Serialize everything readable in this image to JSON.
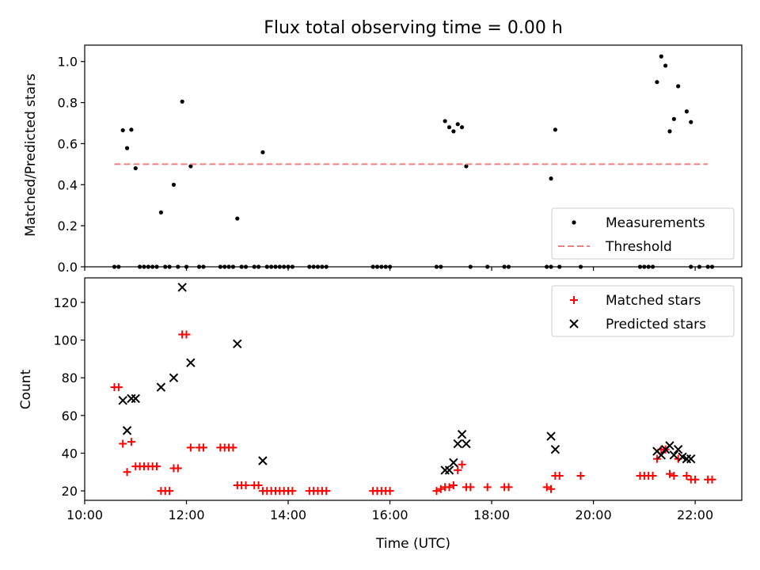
{
  "chart_data": [
    {
      "type": "scatter",
      "title": "Flux total observing time = 0.00 h",
      "xlabel": "",
      "ylabel": "Matched/Predicted stars",
      "xlim": [
        "10:00",
        "22:55"
      ],
      "ylim": [
        0,
        1.08
      ],
      "x_ticks": [
        "10:00",
        "12:00",
        "14:00",
        "16:00",
        "18:00",
        "20:00",
        "22:00"
      ],
      "y_ticks": [
        "0.0",
        "0.2",
        "0.4",
        "0.6",
        "0.8",
        "1.0"
      ],
      "legend_position": "lower-right",
      "series": [
        {
          "name": "Measurements",
          "marker": "dot",
          "color": "#000000",
          "points": [
            [
              "10:35",
              0
            ],
            [
              "10:40",
              0
            ],
            [
              "10:45",
              0.665
            ],
            [
              "10:50",
              0.578
            ],
            [
              "10:55",
              0.668
            ],
            [
              "11:00",
              0.48
            ],
            [
              "11:05",
              0
            ],
            [
              "11:10",
              0
            ],
            [
              "11:15",
              0
            ],
            [
              "11:20",
              0
            ],
            [
              "11:25",
              0
            ],
            [
              "11:30",
              0.265
            ],
            [
              "11:35",
              0
            ],
            [
              "11:40",
              0
            ],
            [
              "11:45",
              0.4
            ],
            [
              "11:50",
              0
            ],
            [
              "11:55",
              0.805
            ],
            [
              "12:00",
              0
            ],
            [
              "12:05",
              0.49
            ],
            [
              "12:15",
              0
            ],
            [
              "12:20",
              0
            ],
            [
              "12:40",
              0
            ],
            [
              "12:45",
              0
            ],
            [
              "12:50",
              0
            ],
            [
              "12:55",
              0
            ],
            [
              "13:00",
              0.235
            ],
            [
              "13:05",
              0
            ],
            [
              "13:10",
              0
            ],
            [
              "13:20",
              0
            ],
            [
              "13:25",
              0
            ],
            [
              "13:30",
              0.558
            ],
            [
              "13:35",
              0
            ],
            [
              "13:40",
              0
            ],
            [
              "13:45",
              0
            ],
            [
              "13:50",
              0
            ],
            [
              "13:55",
              0
            ],
            [
              "14:00",
              0
            ],
            [
              "14:05",
              0
            ],
            [
              "14:25",
              0
            ],
            [
              "14:30",
              0
            ],
            [
              "14:35",
              0
            ],
            [
              "14:40",
              0
            ],
            [
              "14:45",
              0
            ],
            [
              "15:40",
              0
            ],
            [
              "15:45",
              0
            ],
            [
              "15:50",
              0
            ],
            [
              "15:55",
              0
            ],
            [
              "16:00",
              0
            ],
            [
              "16:55",
              0
            ],
            [
              "17:00",
              0
            ],
            [
              "17:05",
              0.71
            ],
            [
              "17:10",
              0.68
            ],
            [
              "17:15",
              0.66
            ],
            [
              "17:20",
              0.695
            ],
            [
              "17:25",
              0.68
            ],
            [
              "17:30",
              0.49
            ],
            [
              "17:35",
              0
            ],
            [
              "17:55",
              0
            ],
            [
              "18:15",
              0
            ],
            [
              "18:20",
              0
            ],
            [
              "19:05",
              0
            ],
            [
              "19:10",
              0
            ],
            [
              "19:10",
              0.43
            ],
            [
              "19:15",
              0.668
            ],
            [
              "19:20",
              0
            ],
            [
              "19:45",
              0
            ],
            [
              "20:55",
              0
            ],
            [
              "21:00",
              0
            ],
            [
              "21:05",
              0
            ],
            [
              "21:10",
              0
            ],
            [
              "21:15",
              0.9
            ],
            [
              "21:20",
              1.025
            ],
            [
              "21:25",
              0.98
            ],
            [
              "21:30",
              0.66
            ],
            [
              "21:35",
              0.72
            ],
            [
              "21:40",
              0.88
            ],
            [
              "21:50",
              0.757
            ],
            [
              "21:55",
              0.705
            ],
            [
              "21:55",
              0
            ],
            [
              "22:05",
              0
            ],
            [
              "22:15",
              0
            ],
            [
              "22:20",
              0
            ]
          ]
        },
        {
          "name": "Threshold",
          "marker": "dashed-line",
          "color": "#f08080",
          "points": [
            [
              "10:35",
              0.5
            ],
            [
              "22:15",
              0.5
            ]
          ]
        }
      ]
    },
    {
      "type": "scatter",
      "title": "",
      "xlabel": "Time (UTC)",
      "ylabel": "Count",
      "xlim": [
        "10:00",
        "22:55"
      ],
      "ylim": [
        15,
        133
      ],
      "x_ticks": [
        "10:00",
        "12:00",
        "14:00",
        "16:00",
        "18:00",
        "20:00",
        "22:00"
      ],
      "y_ticks": [
        "20",
        "40",
        "60",
        "80",
        "100",
        "120"
      ],
      "legend_position": "upper-right",
      "series": [
        {
          "name": "Matched stars",
          "marker": "plus",
          "color": "#ff0000",
          "points": [
            [
              "10:35",
              75
            ],
            [
              "10:40",
              75
            ],
            [
              "10:45",
              45
            ],
            [
              "10:50",
              30
            ],
            [
              "10:55",
              46
            ],
            [
              "11:00",
              33
            ],
            [
              "11:05",
              33
            ],
            [
              "11:10",
              33
            ],
            [
              "11:15",
              33
            ],
            [
              "11:20",
              33
            ],
            [
              "11:25",
              33
            ],
            [
              "11:30",
              20
            ],
            [
              "11:35",
              20
            ],
            [
              "11:40",
              20
            ],
            [
              "11:45",
              32
            ],
            [
              "11:50",
              32
            ],
            [
              "11:55",
              103
            ],
            [
              "12:00",
              103
            ],
            [
              "12:05",
              43
            ],
            [
              "12:15",
              43
            ],
            [
              "12:20",
              43
            ],
            [
              "12:40",
              43
            ],
            [
              "12:45",
              43
            ],
            [
              "12:50",
              43
            ],
            [
              "12:55",
              43
            ],
            [
              "13:00",
              23
            ],
            [
              "13:05",
              23
            ],
            [
              "13:10",
              23
            ],
            [
              "13:20",
              23
            ],
            [
              "13:25",
              23
            ],
            [
              "13:30",
              20
            ],
            [
              "13:35",
              20
            ],
            [
              "13:40",
              20
            ],
            [
              "13:45",
              20
            ],
            [
              "13:50",
              20
            ],
            [
              "13:55",
              20
            ],
            [
              "14:00",
              20
            ],
            [
              "14:05",
              20
            ],
            [
              "14:25",
              20
            ],
            [
              "14:30",
              20
            ],
            [
              "14:35",
              20
            ],
            [
              "14:40",
              20
            ],
            [
              "14:45",
              20
            ],
            [
              "15:40",
              20
            ],
            [
              "15:45",
              20
            ],
            [
              "15:50",
              20
            ],
            [
              "15:55",
              20
            ],
            [
              "16:00",
              20
            ],
            [
              "16:55",
              20
            ],
            [
              "17:00",
              21
            ],
            [
              "17:05",
              22
            ],
            [
              "17:10",
              22
            ],
            [
              "17:15",
              23
            ],
            [
              "17:20",
              31
            ],
            [
              "17:25",
              34
            ],
            [
              "17:30",
              22
            ],
            [
              "17:35",
              22
            ],
            [
              "17:55",
              22
            ],
            [
              "18:15",
              22
            ],
            [
              "18:20",
              22
            ],
            [
              "19:05",
              22
            ],
            [
              "19:10",
              21
            ],
            [
              "19:15",
              28
            ],
            [
              "19:20",
              28
            ],
            [
              "19:45",
              28
            ],
            [
              "20:55",
              28
            ],
            [
              "21:00",
              28
            ],
            [
              "21:05",
              28
            ],
            [
              "21:10",
              28
            ],
            [
              "21:15",
              37
            ],
            [
              "21:20",
              42
            ],
            [
              "21:25",
              42
            ],
            [
              "21:30",
              29
            ],
            [
              "21:35",
              28
            ],
            [
              "21:40",
              37
            ],
            [
              "21:50",
              28
            ],
            [
              "21:55",
              26
            ],
            [
              "22:00",
              26
            ],
            [
              "22:15",
              26
            ],
            [
              "22:20",
              26
            ]
          ]
        },
        {
          "name": "Predicted stars",
          "marker": "x",
          "color": "#000000",
          "points": [
            [
              "10:45",
              68
            ],
            [
              "10:50",
              52
            ],
            [
              "10:55",
              69
            ],
            [
              "11:00",
              69
            ],
            [
              "11:30",
              75
            ],
            [
              "11:45",
              80
            ],
            [
              "11:55",
              128
            ],
            [
              "12:05",
              88
            ],
            [
              "13:00",
              98
            ],
            [
              "13:30",
              36
            ],
            [
              "17:05",
              31
            ],
            [
              "17:10",
              31
            ],
            [
              "17:15",
              35
            ],
            [
              "17:20",
              45
            ],
            [
              "17:25",
              50
            ],
            [
              "17:30",
              45
            ],
            [
              "19:10",
              49
            ],
            [
              "19:15",
              42
            ],
            [
              "21:15",
              41
            ],
            [
              "21:20",
              39
            ],
            [
              "21:25",
              42
            ],
            [
              "21:30",
              44
            ],
            [
              "21:35",
              39
            ],
            [
              "21:40",
              42
            ],
            [
              "21:45",
              38
            ],
            [
              "21:50",
              37
            ],
            [
              "21:55",
              37
            ]
          ]
        }
      ]
    }
  ]
}
